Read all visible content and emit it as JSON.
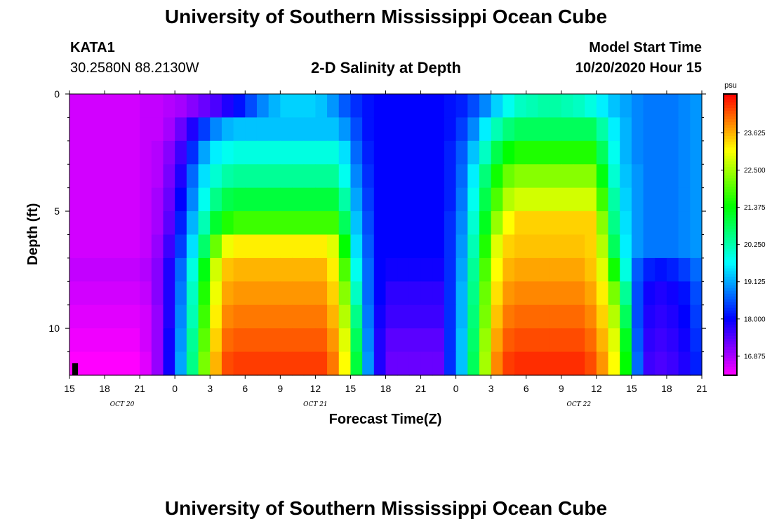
{
  "page": {
    "title_top": "University of Southern Mississippi Ocean Cube",
    "title_bottom": "University of Southern Mississippi Ocean Cube",
    "station": "KATA1",
    "coords": "30.2580N 88.2130W",
    "subtitle": "2-D Salinity at Depth",
    "model_label": "Model Start Time",
    "model_time": "10/20/2020 Hour 15"
  },
  "chart_data": {
    "type": "heatmap",
    "title": "2-D Salinity at Depth",
    "xlabel": "Forecast Time(Z)",
    "ylabel": "Depth (ft)",
    "x_ticks": [
      "15",
      "18",
      "21",
      "0",
      "3",
      "6",
      "9",
      "12",
      "15",
      "18",
      "21",
      "0",
      "3",
      "6",
      "9",
      "12",
      "15",
      "18",
      "21"
    ],
    "date_labels": [
      {
        "text": "OCT 20",
        "forecast_hour": 4.5
      },
      {
        "text": "OCT 21",
        "forecast_hour": 21
      },
      {
        "text": "OCT 22",
        "forecast_hour": 43.5
      }
    ],
    "y_ticks": [
      "0",
      "5",
      "10"
    ],
    "y_tick_values": [
      0,
      5,
      10
    ],
    "xlim": [
      0,
      54
    ],
    "ylim": [
      0,
      12
    ],
    "colorbar": {
      "unit": "psu",
      "labels": [
        "23.625",
        "22.500",
        "21.375",
        "20.250",
        "19.125",
        "18.000",
        "16.875"
      ],
      "label_values": [
        23.625,
        22.5,
        21.375,
        20.25,
        19.125,
        18.0,
        16.875
      ],
      "vmin": 16.3,
      "vmax": 24.8
    },
    "depth_levels_ft": [
      0.5,
      1.5,
      2.5,
      3.5,
      4.5,
      5.5,
      6.5,
      7.5,
      8.5,
      9.5,
      10.5,
      11.5
    ],
    "salinity_rows": [
      [
        16.6,
        16.6,
        16.6,
        16.6,
        16.6,
        16.6,
        16.7,
        16.7,
        16.8,
        16.9,
        17.1,
        17.3,
        17.5,
        17.8,
        18.1,
        18.5,
        18.9,
        19.2,
        19.4,
        19.4,
        19.4,
        19.3,
        19.0,
        18.6,
        18.3,
        18.1,
        18.0,
        18.0,
        18.0,
        18.0,
        18.0,
        18.0,
        18.1,
        18.2,
        18.5,
        18.9,
        19.4,
        19.8,
        20.1,
        20.2,
        20.3,
        20.3,
        20.2,
        20.1,
        19.9,
        19.6,
        19.3,
        19.1,
        18.9,
        18.8,
        18.8,
        18.8,
        18.9,
        19.0
      ],
      [
        16.6,
        16.6,
        16.6,
        16.6,
        16.6,
        16.6,
        16.7,
        16.7,
        16.9,
        17.3,
        17.8,
        18.4,
        18.9,
        19.2,
        19.3,
        19.3,
        19.3,
        19.3,
        19.3,
        19.3,
        19.3,
        19.3,
        19.3,
        19.0,
        18.5,
        18.1,
        18.0,
        18.0,
        18.0,
        18.0,
        18.0,
        18.0,
        18.1,
        18.4,
        18.9,
        19.6,
        20.2,
        20.6,
        20.8,
        20.8,
        20.8,
        20.8,
        20.8,
        20.8,
        20.8,
        20.3,
        19.6,
        19.2,
        18.9,
        18.8,
        18.8,
        18.8,
        18.9,
        19.0
      ],
      [
        16.6,
        16.6,
        16.6,
        16.6,
        16.6,
        16.6,
        16.7,
        16.8,
        17.1,
        17.6,
        18.3,
        19.1,
        19.6,
        19.8,
        19.9,
        19.9,
        19.9,
        19.9,
        19.9,
        19.9,
        19.9,
        19.9,
        19.9,
        19.5,
        18.7,
        18.2,
        18.0,
        18.0,
        18.0,
        18.0,
        18.0,
        18.0,
        18.2,
        18.6,
        19.3,
        20.1,
        20.9,
        21.4,
        21.6,
        21.6,
        21.6,
        21.6,
        21.6,
        21.6,
        21.6,
        20.8,
        19.8,
        19.2,
        18.9,
        18.8,
        18.8,
        18.8,
        18.9,
        19.0
      ],
      [
        16.6,
        16.6,
        16.6,
        16.6,
        16.6,
        16.6,
        16.7,
        16.8,
        17.2,
        17.8,
        18.7,
        19.5,
        20.0,
        20.3,
        20.4,
        20.4,
        20.4,
        20.4,
        20.4,
        20.4,
        20.4,
        20.4,
        20.4,
        19.8,
        18.9,
        18.3,
        18.0,
        18.0,
        18.0,
        18.0,
        18.0,
        18.0,
        18.2,
        18.7,
        19.6,
        20.6,
        21.5,
        22.1,
        22.3,
        22.3,
        22.3,
        22.3,
        22.3,
        22.3,
        22.3,
        21.3,
        20.0,
        19.3,
        19.0,
        18.8,
        18.8,
        18.8,
        18.9,
        19.0
      ],
      [
        16.6,
        16.6,
        16.6,
        16.6,
        16.6,
        16.6,
        16.7,
        16.9,
        17.3,
        18.0,
        18.9,
        19.8,
        20.5,
        20.9,
        21.0,
        21.0,
        21.0,
        21.0,
        21.0,
        21.0,
        21.0,
        21.0,
        21.0,
        20.3,
        19.1,
        18.4,
        18.0,
        18.0,
        18.0,
        18.0,
        18.0,
        18.0,
        18.2,
        18.8,
        19.8,
        20.9,
        21.9,
        22.6,
        22.8,
        22.8,
        22.8,
        22.8,
        22.8,
        22.8,
        22.8,
        21.8,
        20.3,
        19.4,
        19.0,
        18.8,
        18.8,
        18.8,
        18.9,
        19.0
      ],
      [
        16.6,
        16.6,
        16.6,
        16.6,
        16.6,
        16.6,
        16.7,
        16.9,
        17.4,
        18.2,
        19.2,
        20.2,
        21.1,
        21.6,
        21.8,
        21.8,
        21.8,
        21.8,
        21.8,
        21.8,
        21.8,
        21.8,
        21.8,
        20.8,
        19.3,
        18.5,
        18.0,
        18.0,
        18.0,
        18.0,
        18.0,
        18.0,
        18.3,
        18.9,
        20.0,
        21.2,
        22.4,
        23.1,
        23.4,
        23.4,
        23.4,
        23.4,
        23.4,
        23.4,
        23.4,
        22.3,
        20.5,
        19.5,
        19.0,
        18.8,
        18.8,
        18.8,
        18.9,
        19.0
      ],
      [
        16.6,
        16.6,
        16.6,
        16.6,
        16.6,
        16.6,
        16.7,
        17.0,
        17.6,
        18.4,
        19.5,
        20.7,
        22.1,
        23.0,
        23.2,
        23.2,
        23.2,
        23.2,
        23.2,
        23.2,
        23.2,
        23.2,
        22.9,
        21.4,
        19.5,
        18.6,
        18.0,
        18.0,
        18.0,
        18.0,
        18.0,
        18.0,
        18.3,
        19.0,
        20.2,
        21.6,
        22.9,
        23.4,
        23.5,
        23.5,
        23.5,
        23.5,
        23.5,
        23.5,
        23.4,
        22.6,
        20.8,
        19.6,
        19.0,
        18.8,
        18.8,
        18.8,
        18.9,
        19.0
      ],
      [
        16.7,
        16.7,
        16.7,
        16.7,
        16.7,
        16.7,
        16.8,
        17.1,
        17.8,
        18.7,
        19.9,
        21.3,
        22.8,
        23.5,
        23.6,
        23.6,
        23.6,
        23.6,
        23.6,
        23.6,
        23.6,
        23.6,
        23.2,
        21.9,
        19.8,
        18.7,
        18.0,
        17.9,
        17.9,
        17.9,
        17.9,
        17.9,
        18.3,
        19.1,
        20.4,
        21.9,
        23.1,
        23.6,
        23.7,
        23.7,
        23.7,
        23.7,
        23.7,
        23.7,
        23.5,
        22.9,
        21.5,
        19.9,
        18.6,
        18.2,
        18.1,
        18.2,
        18.4,
        18.7
      ],
      [
        16.6,
        16.6,
        16.6,
        16.6,
        16.6,
        16.6,
        16.7,
        17.1,
        17.8,
        18.8,
        20.1,
        21.6,
        23.0,
        23.7,
        23.8,
        23.8,
        23.8,
        23.8,
        23.8,
        23.8,
        23.8,
        23.8,
        23.4,
        22.3,
        20.1,
        18.7,
        18.0,
        17.7,
        17.7,
        17.7,
        17.7,
        17.7,
        18.3,
        19.2,
        20.5,
        22.1,
        23.3,
        23.8,
        23.9,
        23.9,
        23.9,
        23.9,
        23.9,
        23.9,
        23.7,
        23.2,
        22.2,
        20.4,
        18.5,
        17.9,
        17.8,
        17.9,
        18.1,
        18.5
      ],
      [
        16.5,
        16.5,
        16.5,
        16.5,
        16.5,
        16.5,
        16.6,
        17.0,
        17.8,
        18.9,
        20.2,
        21.8,
        23.2,
        23.9,
        24.0,
        24.0,
        24.0,
        24.0,
        24.0,
        24.0,
        24.0,
        24.0,
        23.6,
        22.6,
        20.5,
        18.8,
        17.9,
        17.6,
        17.6,
        17.6,
        17.6,
        17.6,
        18.3,
        19.2,
        20.6,
        22.2,
        23.5,
        24.0,
        24.1,
        24.1,
        24.1,
        24.1,
        24.1,
        24.1,
        23.9,
        23.4,
        22.6,
        20.8,
        18.5,
        17.8,
        17.7,
        17.8,
        18.0,
        18.4
      ],
      [
        16.4,
        16.4,
        16.4,
        16.4,
        16.4,
        16.4,
        16.6,
        17.0,
        17.9,
        19.0,
        20.4,
        22.0,
        23.4,
        24.1,
        24.2,
        24.2,
        24.2,
        24.2,
        24.2,
        24.2,
        24.2,
        24.2,
        23.8,
        22.9,
        20.8,
        18.9,
        17.8,
        17.4,
        17.4,
        17.4,
        17.4,
        17.4,
        18.3,
        19.3,
        20.7,
        22.4,
        23.7,
        24.2,
        24.3,
        24.3,
        24.3,
        24.3,
        24.3,
        24.3,
        24.1,
        23.6,
        22.9,
        21.2,
        18.6,
        17.7,
        17.6,
        17.7,
        17.9,
        18.3
      ],
      [
        16.3,
        16.3,
        16.3,
        16.3,
        16.3,
        16.3,
        16.5,
        17.0,
        17.9,
        19.1,
        20.5,
        22.2,
        23.6,
        24.3,
        24.4,
        24.4,
        24.4,
        24.4,
        24.4,
        24.4,
        24.4,
        24.4,
        24.0,
        23.1,
        21.0,
        19.0,
        17.8,
        17.3,
        17.3,
        17.3,
        17.3,
        17.3,
        18.3,
        19.3,
        20.8,
        22.5,
        23.9,
        24.4,
        24.5,
        24.5,
        24.5,
        24.5,
        24.5,
        24.5,
        24.3,
        23.8,
        23.1,
        21.4,
        18.7,
        17.6,
        17.5,
        17.6,
        17.8,
        18.2
      ]
    ]
  }
}
